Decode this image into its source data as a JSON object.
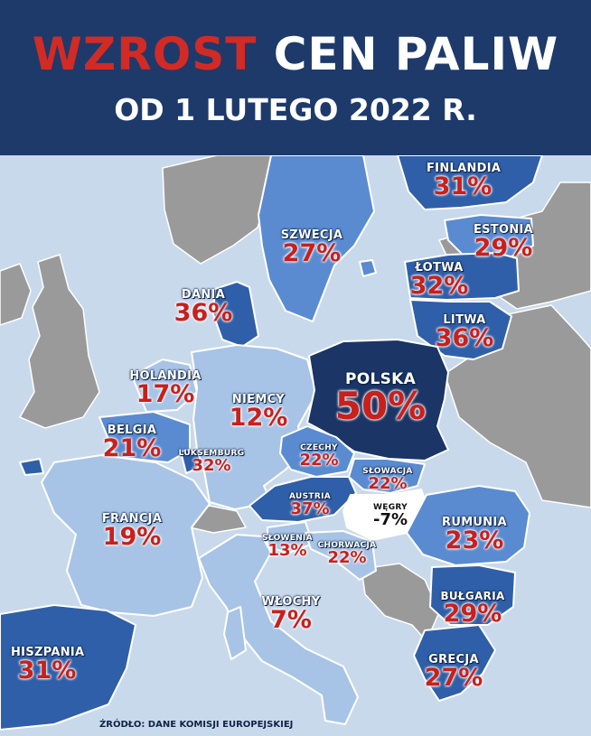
{
  "header": {
    "title_highlight": "WZROST",
    "title_rest": "CEN PALIW",
    "subtitle": "OD 1 LUTEGO 2022 R."
  },
  "countries": {
    "finlandia": {
      "name": "FINLANDIA",
      "value": "31%"
    },
    "szwecja": {
      "name": "SZWECJA",
      "value": "27%"
    },
    "estonia": {
      "name": "ESTONIA",
      "value": "29%"
    },
    "lotwa": {
      "name": "ŁOTWA",
      "value": "32%"
    },
    "dania": {
      "name": "DANIA",
      "value": "36%"
    },
    "litwa": {
      "name": "LITWA",
      "value": "36%"
    },
    "holandia": {
      "name": "HOLANDIA",
      "value": "17%"
    },
    "polska": {
      "name": "POLSKA",
      "value": "50%"
    },
    "niemcy": {
      "name": "NIEMCY",
      "value": "12%"
    },
    "belgia": {
      "name": "BELGIA",
      "value": "21%"
    },
    "luksemburg": {
      "name": "LUKSEMBURG",
      "value": "32%"
    },
    "czechy": {
      "name": "CZECHY",
      "value": "22%"
    },
    "slowacja": {
      "name": "SŁOWACJA",
      "value": "22%"
    },
    "austria": {
      "name": "AUSTRIA",
      "value": "37%"
    },
    "wegry": {
      "name": "WĘGRY",
      "value": "-7%"
    },
    "francja": {
      "name": "FRANCJA",
      "value": "19%"
    },
    "rumunia": {
      "name": "RUMUNIA",
      "value": "23%"
    },
    "slowenia": {
      "name": "SŁOWENIA",
      "value": "13%"
    },
    "chorwacja": {
      "name": "CHORWACJA",
      "value": "22%"
    },
    "wlochy": {
      "name": "WŁOCHY",
      "value": "7%"
    },
    "bulgaria": {
      "name": "BUŁGARIA",
      "value": "29%"
    },
    "hiszpania": {
      "name": "HISZPANIA",
      "value": "31%"
    },
    "grecja": {
      "name": "GRECJA",
      "value": "27%"
    }
  },
  "source": "ŹRÓDŁO: DANE KOMISJI EUROPEJSKIEJ",
  "colors": {
    "header_bg": "#1e3a6b",
    "title_red": "#d22a25",
    "sea": "#c9d9ec",
    "non_eu_grey": "#9a9a9a",
    "tone_light": "#a7c4e6",
    "tone_medium": "#5a8bd1",
    "tone_strong": "#2f5fa8",
    "tone_darkest": "#1a3566"
  }
}
